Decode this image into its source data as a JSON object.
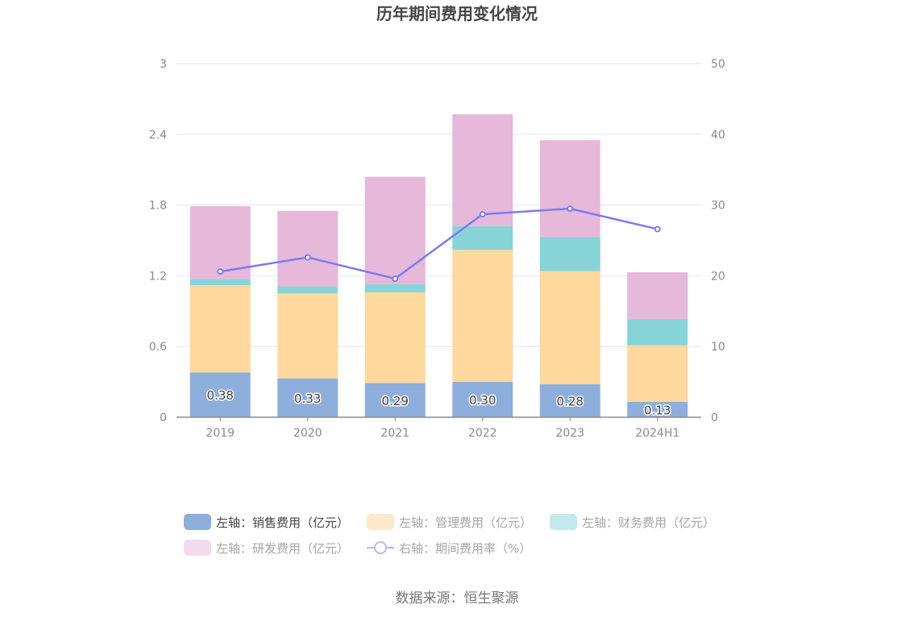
{
  "chart_data": {
    "type": "bar",
    "title": "历年期间费用变化情况",
    "categories": [
      "2019",
      "2020",
      "2021",
      "2022",
      "2023",
      "2024H1"
    ],
    "stacked": true,
    "left_axis": {
      "ylim": [
        0,
        3
      ],
      "ticks": [
        "0",
        "0.6",
        "1.2",
        "1.8",
        "2.4",
        "3"
      ]
    },
    "right_axis": {
      "ylim": [
        0,
        50
      ],
      "ticks": [
        "0",
        "10",
        "20",
        "30",
        "40",
        "50"
      ]
    },
    "grid": true,
    "series": [
      {
        "name": "左轴：销售费用（亿元）",
        "type": "bar",
        "axis": "left",
        "color": "#8eaedc",
        "values": [
          0.38,
          0.33,
          0.29,
          0.3,
          0.28,
          0.13
        ],
        "labels": [
          "0.38",
          "0.33",
          "0.29",
          "0.30",
          "0.28",
          "0.13"
        ]
      },
      {
        "name": "左轴：管理费用（亿元）",
        "type": "bar",
        "axis": "left",
        "color": "#fed89d",
        "legend_color": "#fde9c9",
        "values": [
          0.74,
          0.72,
          0.77,
          1.12,
          0.96,
          0.48
        ]
      },
      {
        "name": "左轴：财务费用（亿元）",
        "type": "bar",
        "axis": "left",
        "color": "#86d4d8",
        "legend_color": "#c2eaec",
        "values": [
          0.05,
          0.06,
          0.07,
          0.2,
          0.29,
          0.22
        ]
      },
      {
        "name": "左轴：研发费用（亿元）",
        "type": "bar",
        "axis": "left",
        "color": "#e6b8d9",
        "legend_color": "#f2dcec",
        "values": [
          0.62,
          0.64,
          0.91,
          0.95,
          0.82,
          0.4
        ]
      },
      {
        "name": "右轴：期间费用率（%）",
        "type": "line",
        "axis": "right",
        "color": "#7b7cf0",
        "legend_color": "#b8b8f6",
        "values": [
          20.6,
          22.6,
          19.6,
          28.7,
          29.5,
          26.6
        ]
      }
    ],
    "legend_position": "bottom",
    "active_legend_index": 0
  },
  "source": "数据来源：恒生聚源"
}
